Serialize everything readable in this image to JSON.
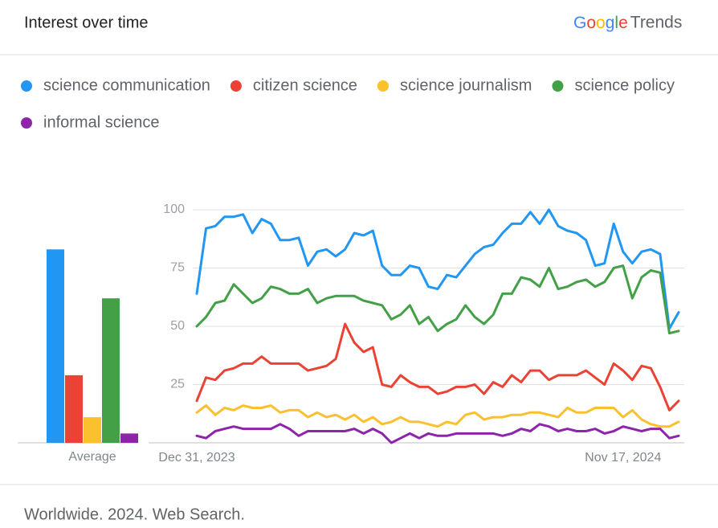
{
  "header": {
    "brand_logo": "Google",
    "brand_suffix": "Trends"
  },
  "footer": "Worldwide. 2024. Web Search.",
  "chart_data": [
    {
      "type": "line",
      "title": "Interest over time",
      "categories": [
        "Dec 31, 2023",
        null,
        null,
        null,
        null,
        null,
        null,
        null,
        null,
        null,
        null,
        null,
        null,
        null,
        null,
        null,
        null,
        null,
        null,
        null,
        null,
        null,
        null,
        null,
        null,
        null,
        null,
        null,
        null,
        null,
        null,
        null,
        null,
        null,
        null,
        null,
        null,
        null,
        null,
        null,
        null,
        null,
        null,
        null,
        null,
        null,
        "Nov 17, 2024",
        null,
        null,
        null,
        null,
        null,
        null
      ],
      "ylim": [
        0,
        100
      ],
      "yticks": [
        25,
        50,
        75,
        100
      ],
      "grid": true,
      "series": [
        {
          "name": "science communication",
          "color": "#2196f3",
          "values": [
            64,
            92,
            93,
            97,
            97,
            98,
            90,
            96,
            94,
            87,
            87,
            88,
            76,
            82,
            83,
            80,
            83,
            90,
            89,
            91,
            76,
            72,
            72,
            76,
            75,
            67,
            66,
            72,
            71,
            76,
            81,
            84,
            85,
            90,
            94,
            94,
            99,
            94,
            100,
            93,
            91,
            90,
            87,
            76,
            77,
            94,
            82,
            77,
            82,
            83,
            81,
            49,
            56
          ]
        },
        {
          "name": "citizen science",
          "color": "#ea4335",
          "values": [
            18,
            28,
            27,
            31,
            32,
            34,
            34,
            37,
            34,
            34,
            34,
            34,
            31,
            32,
            33,
            36,
            51,
            43,
            39,
            41,
            25,
            24,
            29,
            26,
            24,
            24,
            21,
            22,
            24,
            24,
            25,
            21,
            26,
            24,
            29,
            26,
            31,
            31,
            27,
            29,
            29,
            29,
            31,
            28,
            25,
            34,
            31,
            27,
            33,
            32,
            24,
            14,
            18
          ]
        },
        {
          "name": "science journalism",
          "color": "#fbc02d",
          "values": [
            13,
            16,
            12,
            15,
            14,
            16,
            15,
            15,
            16,
            13,
            14,
            14,
            11,
            13,
            11,
            12,
            10,
            12,
            9,
            11,
            8,
            9,
            11,
            9,
            9,
            8,
            7,
            9,
            8,
            12,
            13,
            10,
            11,
            11,
            12,
            12,
            13,
            13,
            12,
            11,
            15,
            13,
            13,
            15,
            15,
            15,
            11,
            14,
            10,
            8,
            7,
            7,
            9
          ]
        },
        {
          "name": "science policy",
          "color": "#43a047",
          "values": [
            50,
            54,
            60,
            61,
            68,
            64,
            60,
            62,
            67,
            66,
            64,
            64,
            66,
            60,
            62,
            63,
            63,
            63,
            61,
            60,
            59,
            53,
            55,
            59,
            51,
            54,
            48,
            51,
            53,
            59,
            54,
            51,
            55,
            64,
            64,
            71,
            70,
            67,
            75,
            66,
            67,
            69,
            70,
            67,
            69,
            75,
            76,
            62,
            71,
            74,
            73,
            47,
            48
          ]
        },
        {
          "name": "informal science",
          "color": "#8e24aa",
          "values": [
            3,
            2,
            5,
            6,
            7,
            6,
            6,
            6,
            6,
            8,
            6,
            3,
            5,
            5,
            5,
            5,
            5,
            6,
            4,
            6,
            4,
            0,
            2,
            4,
            2,
            4,
            3,
            3,
            4,
            4,
            4,
            4,
            4,
            3,
            4,
            6,
            5,
            8,
            7,
            5,
            6,
            5,
            5,
            6,
            4,
            5,
            7,
            6,
            5,
            6,
            6,
            2,
            3
          ]
        }
      ]
    },
    {
      "type": "bar",
      "categories": [
        "Average"
      ],
      "ylim": [
        0,
        100
      ],
      "series": [
        {
          "color": "#2196f3",
          "values": [
            83
          ]
        },
        {
          "color": "#ea4335",
          "values": [
            29
          ]
        },
        {
          "color": "#fbc02d",
          "values": [
            11
          ]
        },
        {
          "color": "#43a047",
          "values": [
            62
          ]
        },
        {
          "color": "#8e24aa",
          "values": [
            4
          ]
        }
      ]
    }
  ]
}
